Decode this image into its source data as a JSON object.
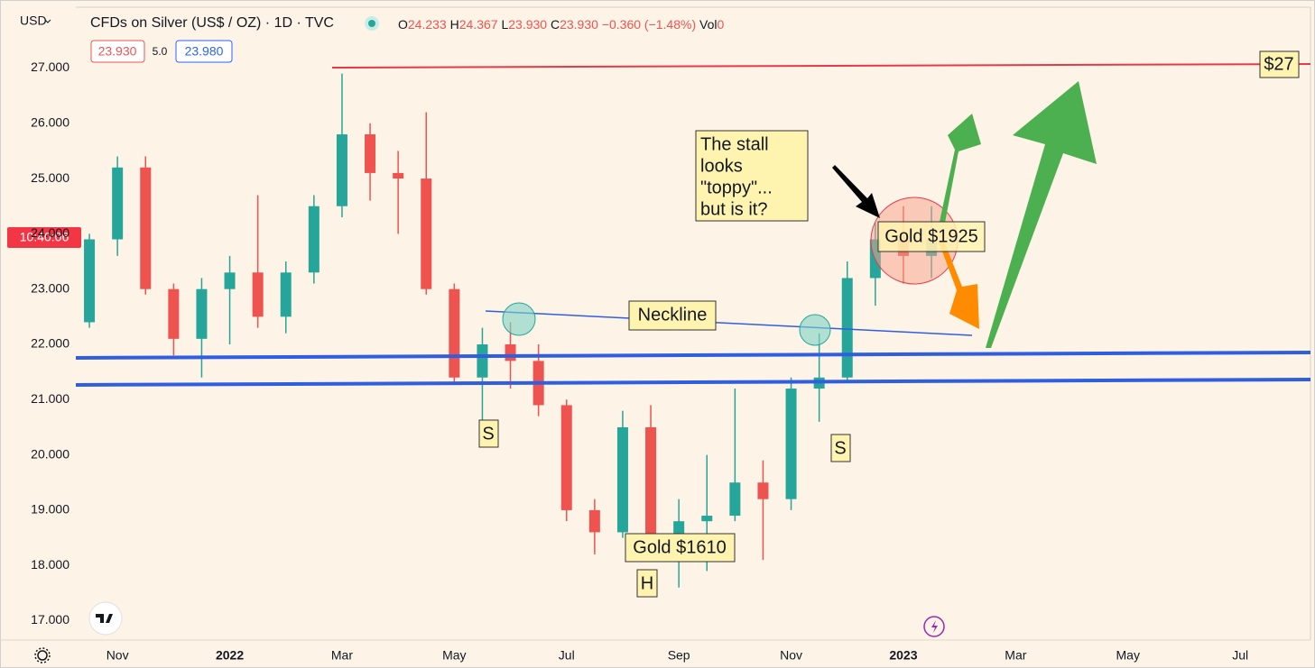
{
  "header": {
    "currency": "USD",
    "title": "CFDs on Silver (US$ / OZ) · 1D · TVC",
    "ohlc": [
      {
        "label": "O",
        "value": "24.233"
      },
      {
        "label": "H",
        "value": "24.367"
      },
      {
        "label": "L",
        "value": "23.930"
      },
      {
        "label": "C",
        "value": "23.930"
      }
    ],
    "change": "−0.360 (−1.48%)",
    "volume_label": "Vol",
    "volume": "0",
    "bid": "23.930",
    "spread": "5.0",
    "ask": "23.980",
    "countdown": "10:40:06"
  },
  "chart_data": {
    "type": "candlestick",
    "categories": [
      null,
      "Nov",
      null,
      null,
      null,
      "2022",
      null,
      null,
      null,
      "Mar",
      null,
      null,
      null,
      "May",
      null,
      null,
      null,
      "Jul",
      null,
      null,
      null,
      "Sep",
      null,
      null,
      null,
      "Nov",
      null,
      null,
      null,
      "2023",
      null,
      null,
      null,
      "Mar",
      null,
      null,
      null,
      "May",
      null,
      null,
      null,
      "Jul",
      null,
      null
    ],
    "ohlc": {
      "open": [
        22.4,
        23.9,
        25.2,
        23.0,
        22.1,
        23.0,
        23.3,
        22.5,
        23.3,
        24.5,
        25.8,
        25.1,
        25.0,
        23.0,
        21.4,
        22.0,
        21.7,
        20.9,
        19.0,
        18.6,
        20.5,
        18.4,
        18.8,
        18.9,
        19.5,
        19.2,
        21.2,
        21.4,
        23.2,
        23.9,
        23.6,
        null,
        null,
        null,
        null,
        null,
        null,
        null,
        null,
        null,
        null,
        null,
        null,
        null
      ],
      "high": [
        24.0,
        25.4,
        25.4,
        23.1,
        23.2,
        23.6,
        24.7,
        23.5,
        24.7,
        26.9,
        26.0,
        25.5,
        26.2,
        23.1,
        22.3,
        22.4,
        22.0,
        21.0,
        19.2,
        20.8,
        20.9,
        19.2,
        20.0,
        21.2,
        19.9,
        21.4,
        22.2,
        23.5,
        24.2,
        24.5,
        24.5,
        null,
        null,
        null,
        null,
        null,
        null,
        null,
        null,
        null,
        null,
        null,
        null,
        null
      ],
      "low": [
        22.3,
        23.6,
        22.9,
        21.8,
        21.4,
        22.0,
        22.3,
        22.2,
        23.1,
        24.3,
        24.6,
        24.0,
        22.9,
        21.3,
        20.5,
        21.2,
        20.7,
        18.8,
        18.2,
        18.5,
        18.3,
        17.6,
        17.9,
        18.8,
        18.1,
        19.0,
        20.6,
        21.3,
        22.7,
        23.1,
        23.2,
        null,
        null,
        null,
        null,
        null,
        null,
        null,
        null,
        null,
        null,
        null,
        null,
        null
      ],
      "close": [
        23.9,
        25.2,
        23.0,
        22.1,
        23.0,
        23.3,
        22.5,
        23.3,
        24.5,
        25.8,
        25.1,
        25.0,
        23.0,
        21.4,
        22.0,
        21.7,
        20.9,
        19.0,
        18.6,
        20.5,
        18.4,
        18.8,
        18.9,
        19.5,
        19.2,
        21.2,
        21.4,
        23.2,
        23.9,
        23.6,
        23.9,
        null,
        null,
        null,
        null,
        null,
        null,
        null,
        null,
        null,
        null,
        null,
        null,
        null
      ]
    },
    "up_color": "#26a69a",
    "down_color": "#ef5350",
    "ylim": [
      16.65,
      28.1
    ],
    "yticks": [
      {
        "value": 17,
        "label": "17.000"
      },
      {
        "value": 18,
        "label": "18.000"
      },
      {
        "value": 19,
        "label": "19.000"
      },
      {
        "value": 20,
        "label": "20.000"
      },
      {
        "value": 21,
        "label": "21.000"
      },
      {
        "value": 22,
        "label": "22.000"
      },
      {
        "value": 23,
        "label": "23.000"
      },
      {
        "value": 24,
        "label": "24.000"
      },
      {
        "value": 25,
        "label": "25.000"
      },
      {
        "value": 26,
        "label": "26.000"
      },
      {
        "value": 27,
        "label": "27.000"
      }
    ]
  },
  "annotations": {
    "price_target": "$27",
    "neckline": "Neckline",
    "left_shoulder": "S",
    "right_shoulder": "S",
    "head": "H",
    "gold_low": "Gold $1610",
    "gold_high": "Gold $1925",
    "stall_note": [
      "The stall",
      "looks",
      "\"toppy\"...",
      "but is it?"
    ]
  }
}
